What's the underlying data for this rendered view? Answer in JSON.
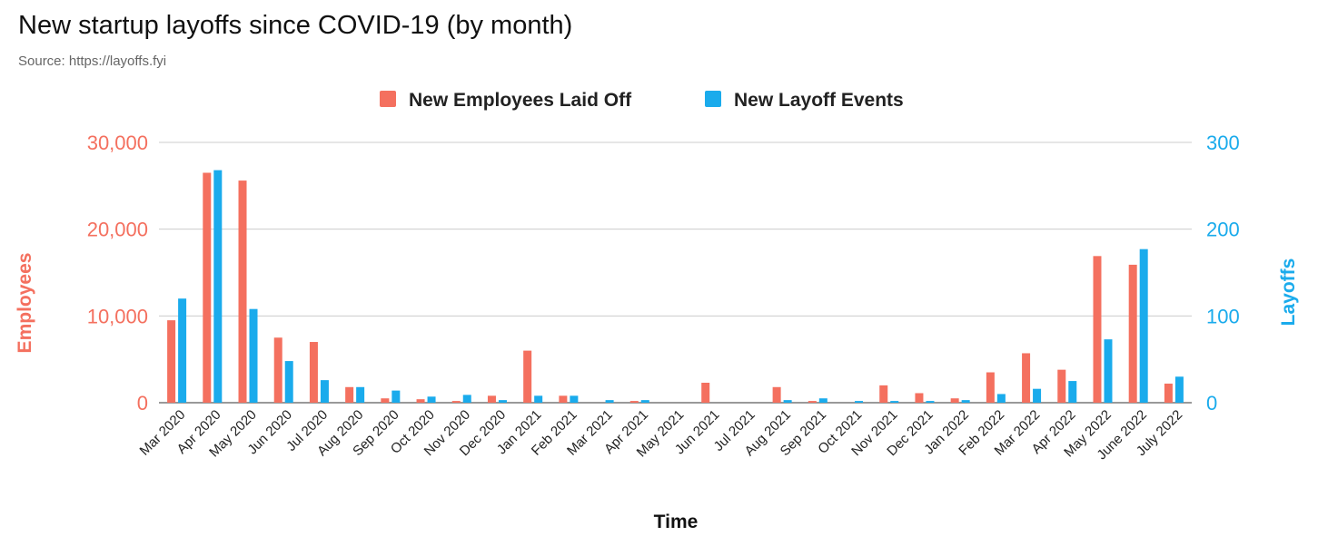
{
  "chart_data": {
    "type": "bar",
    "title": "New startup layoffs since COVID-19 (by month)",
    "subtitle": "Source: https://layoffs.fyi",
    "xlabel": "Time",
    "ylabel_left": "Employees",
    "ylabel_right": "Layoffs",
    "legend_position": "top-center",
    "grid": true,
    "ylim_left": [
      0,
      30000
    ],
    "ylim_right": [
      0,
      300
    ],
    "yticks_left": [
      "0",
      "10,000",
      "20,000",
      "30,000"
    ],
    "yticks_right": [
      "0",
      "100",
      "200",
      "300"
    ],
    "categories": [
      "Mar 2020",
      "Apr 2020",
      "May 2020",
      "Jun 2020",
      "Jul 2020",
      "Aug 2020",
      "Sep 2020",
      "Oct 2020",
      "Nov 2020",
      "Dec 2020",
      "Jan 2021",
      "Feb 2021",
      "Mar 2021",
      "Apr 2021",
      "May 2021",
      "Jun 2021",
      "Jul 2021",
      "Aug 2021",
      "Sep 2021",
      "Oct 2021",
      "Nov 2021",
      "Dec 2021",
      "Jan 2022",
      "Feb 2022",
      "Mar 2022",
      "Apr 2022",
      "May 2022",
      "June 2022",
      "July 2022"
    ],
    "series": [
      {
        "name": "New Employees Laid Off",
        "axis": "left",
        "color": "#f4705f",
        "values": [
          9500,
          26500,
          25600,
          7500,
          7000,
          1800,
          500,
          400,
          200,
          800,
          6000,
          800,
          0,
          200,
          0,
          2300,
          0,
          1800,
          200,
          0,
          2000,
          1100,
          500,
          3500,
          5700,
          3800,
          16900,
          15900,
          2200
        ]
      },
      {
        "name": "New Layoff Events",
        "axis": "right",
        "color": "#1aabec",
        "values": [
          120,
          268,
          108,
          48,
          26,
          18,
          14,
          7,
          9,
          3,
          8,
          8,
          3,
          3,
          0,
          0,
          0,
          3,
          5,
          2,
          2,
          2,
          3,
          10,
          16,
          25,
          73,
          177,
          30
        ]
      }
    ]
  }
}
